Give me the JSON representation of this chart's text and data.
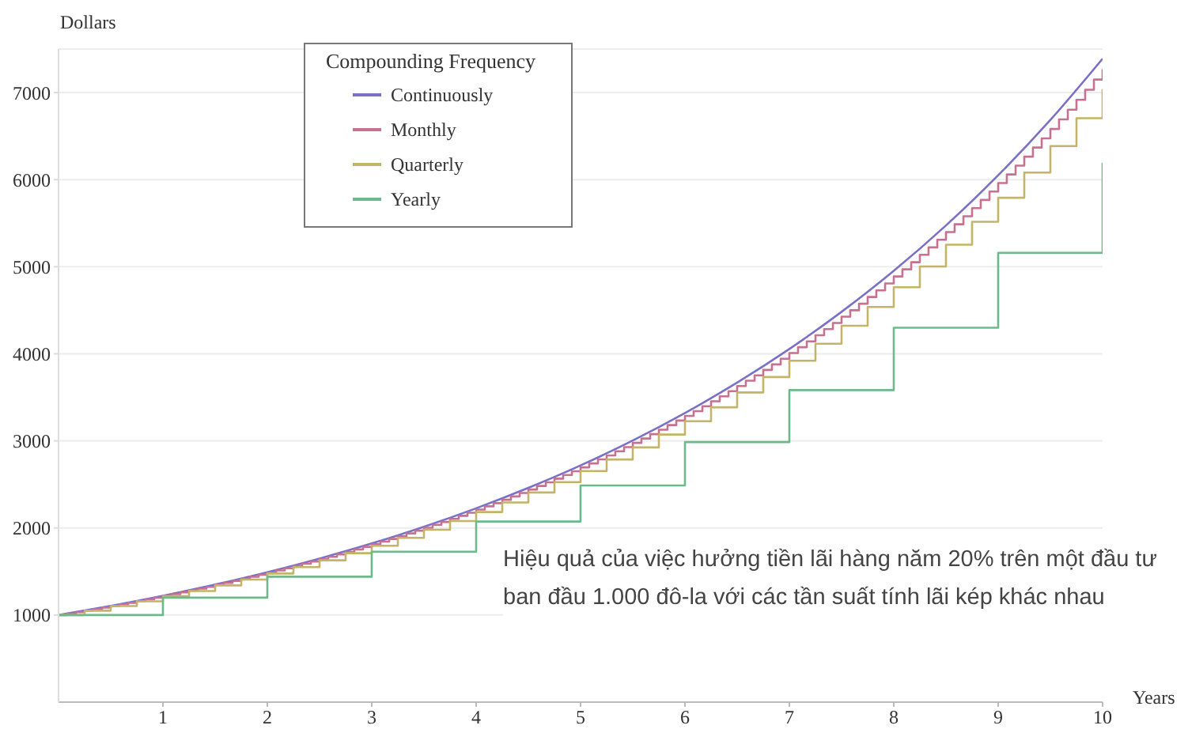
{
  "chart_data": {
    "type": "line",
    "xlabel": "Years",
    "ylabel": "Dollars",
    "legend_title": "Compounding Frequency",
    "legend": "top left",
    "grid": "y",
    "xlim": [
      0,
      10
    ],
    "xticks": [
      1,
      2,
      3,
      4,
      5,
      6,
      7,
      8,
      9,
      10
    ],
    "ylim": [
      0,
      7500
    ],
    "yticks": [
      1000,
      2000,
      3000,
      4000,
      5000,
      6000,
      7000
    ],
    "annotations": [
      "Hiệu quả của việc hưởng tiền lãi hàng năm 20% trên một đầu tư ban đầu 1.000 đô-la với các tần suất tính lãi kép khác nhau"
    ],
    "series": [
      {
        "name": "Continuously",
        "type": "line",
        "color": "#7a70c8",
        "x": [
          0,
          0.5,
          1,
          1.5,
          2,
          2.5,
          3,
          3.5,
          4,
          4.5,
          5,
          5.5,
          6,
          6.5,
          7,
          7.5,
          8,
          8.5,
          9,
          9.5,
          10
        ],
        "values": [
          1000,
          1105,
          1221,
          1350,
          1492,
          1649,
          1822,
          2014,
          2226,
          2460,
          2718,
          3004,
          3320,
          3669,
          4055,
          4482,
          4953,
          5474,
          6050,
          6686,
          7389
        ]
      },
      {
        "name": "Monthly",
        "type": "step",
        "color": "#c8708f",
        "x": [
          0,
          0.083,
          0.167,
          0.25,
          0.333,
          0.417,
          0.5,
          0.583,
          0.667,
          0.75,
          0.833,
          0.917,
          1,
          1.083,
          1.167,
          1.25,
          1.333,
          1.417,
          1.5,
          1.583,
          1.667,
          1.75,
          1.833,
          1.917,
          2,
          2.083,
          2.167,
          2.25,
          2.333,
          2.417,
          2.5,
          2.583,
          2.667,
          2.75,
          2.833,
          2.917,
          3,
          3.083,
          3.167,
          3.25,
          3.333,
          3.417,
          3.5,
          3.583,
          3.667,
          3.75,
          3.833,
          3.917,
          4,
          4.083,
          4.167,
          4.25,
          4.333,
          4.417,
          4.5,
          4.583,
          4.667,
          4.75,
          4.833,
          4.917,
          5,
          5.083,
          5.167,
          5.25,
          5.333,
          5.417,
          5.5,
          5.583,
          5.667,
          5.75,
          5.833,
          5.917,
          6,
          6.083,
          6.167,
          6.25,
          6.333,
          6.417,
          6.5,
          6.583,
          6.667,
          6.75,
          6.833,
          6.917,
          7,
          7.083,
          7.167,
          7.25,
          7.333,
          7.417,
          7.5,
          7.583,
          7.667,
          7.75,
          7.833,
          7.917,
          8,
          8.083,
          8.167,
          8.25,
          8.333,
          8.417,
          8.5,
          8.583,
          8.667,
          8.75,
          8.833,
          8.917,
          9,
          9.083,
          9.167,
          9.25,
          9.333,
          9.417,
          9.5,
          9.583,
          9.667,
          9.75,
          9.833,
          9.917,
          10
        ],
        "values": [
          1000,
          1017,
          1034,
          1051,
          1068,
          1086,
          1104,
          1123,
          1141,
          1160,
          1180,
          1199,
          1219,
          1240,
          1260,
          1281,
          1303,
          1324,
          1347,
          1369,
          1392,
          1415,
          1439,
          1463,
          1487,
          1512,
          1537,
          1563,
          1589,
          1615,
          1642,
          1669,
          1697,
          1725,
          1754,
          1783,
          1813,
          1843,
          1874,
          1905,
          1937,
          1969,
          2002,
          2036,
          2069,
          2104,
          2139,
          2175,
          2211,
          2248,
          2285,
          2323,
          2362,
          2401,
          2441,
          2482,
          2524,
          2566,
          2608,
          2652,
          2696,
          2741,
          2787,
          2833,
          2880,
          2928,
          2977,
          3027,
          3077,
          3128,
          3181,
          3234,
          3287,
          3342,
          3398,
          3455,
          3512,
          3571,
          3630,
          3691,
          3752,
          3815,
          3878,
          3943,
          4009,
          4076,
          4143,
          4213,
          4283,
          4354,
          4427,
          4500,
          4575,
          4652,
          4729,
          4808,
          4888,
          4970,
          5052,
          5137,
          5222,
          5309,
          5398,
          5488,
          5579,
          5672,
          5767,
          5863,
          5961,
          6060,
          6161,
          6264,
          6368,
          6474,
          6582,
          6692,
          6803,
          6917,
          7032,
          7149,
          7268
        ]
      },
      {
        "name": "Quarterly",
        "type": "step",
        "color": "#c4b468",
        "x": [
          0,
          0.25,
          0.5,
          0.75,
          1,
          1.25,
          1.5,
          1.75,
          2,
          2.25,
          2.5,
          2.75,
          3,
          3.25,
          3.5,
          3.75,
          4,
          4.25,
          4.5,
          4.75,
          5,
          5.25,
          5.5,
          5.75,
          6,
          6.25,
          6.5,
          6.75,
          7,
          7.25,
          7.5,
          7.75,
          8,
          8.25,
          8.5,
          8.75,
          9,
          9.25,
          9.5,
          9.75,
          10
        ],
        "values": [
          1000,
          1050,
          1103,
          1158,
          1216,
          1276,
          1340,
          1407,
          1477,
          1551,
          1629,
          1710,
          1796,
          1886,
          1980,
          2079,
          2183,
          2292,
          2407,
          2527,
          2653,
          2786,
          2925,
          3072,
          3225,
          3386,
          3556,
          3733,
          3920,
          4116,
          4322,
          4538,
          4765,
          5003,
          5253,
          5516,
          5792,
          6081,
          6386,
          6705,
          7040
        ]
      },
      {
        "name": "Yearly",
        "type": "step",
        "color": "#6cba8c",
        "x": [
          0,
          1,
          2,
          3,
          4,
          5,
          6,
          7,
          8,
          9,
          10
        ],
        "values": [
          1000,
          1200,
          1440,
          1728,
          2074,
          2488,
          2986,
          3583,
          4300,
          5160,
          6192
        ]
      }
    ]
  }
}
